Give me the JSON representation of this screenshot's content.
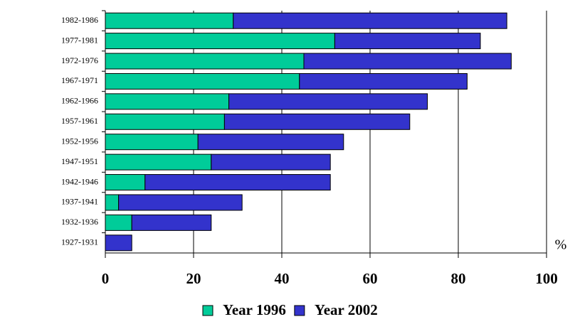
{
  "chart_data": {
    "type": "stacked-barh",
    "categories": [
      "1982-1986",
      "1977-1981",
      "1972-1976",
      "1967-1971",
      "1962-1966",
      "1957-1961",
      "1952-1956",
      "1947-1951",
      "1942-1946",
      "1937-1941",
      "1932-1936",
      "1927-1931"
    ],
    "series": [
      {
        "name": "Year 1996",
        "color": "#00cc99",
        "values": [
          29,
          52,
          45,
          44,
          28,
          27,
          21,
          24,
          9,
          3,
          6,
          0
        ]
      },
      {
        "name": "Year 2002",
        "color": "#3333cc",
        "values": [
          62,
          33,
          47,
          38,
          45,
          42,
          33,
          27,
          42,
          28,
          18,
          6
        ]
      }
    ],
    "x_label": "%",
    "xlim": [
      0,
      100
    ],
    "xticks": [
      0,
      20,
      40,
      60,
      80,
      100
    ],
    "grid": true
  }
}
